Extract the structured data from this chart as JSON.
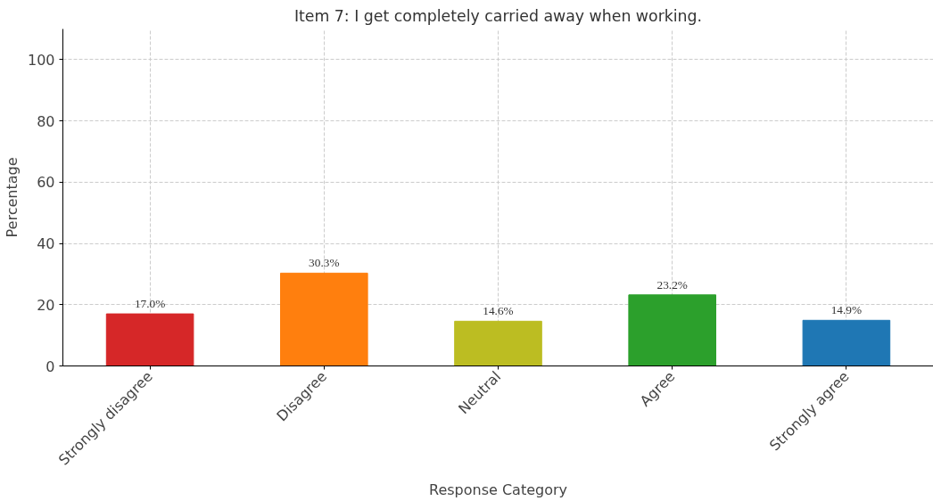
{
  "chart_data": {
    "type": "bar",
    "title": "Item 7: I get completely carried away when working.",
    "xlabel": "Response Category",
    "ylabel": "Percentage",
    "categories": [
      "Strongly disagree",
      "Disagree",
      "Neutral",
      "Agree",
      "Strongly agree"
    ],
    "values": [
      17.0,
      30.3,
      14.6,
      23.2,
      14.9
    ],
    "colors": [
      "#d62728",
      "#ff7f0e",
      "#bcbd22",
      "#2ca02c",
      "#1f77b4"
    ],
    "value_labels": [
      "17.0%",
      "30.3%",
      "14.6%",
      "23.2%",
      "14.9%"
    ],
    "ylim": [
      0,
      110
    ],
    "yticks": [
      0,
      20,
      40,
      60,
      80,
      100
    ],
    "grid": true
  }
}
